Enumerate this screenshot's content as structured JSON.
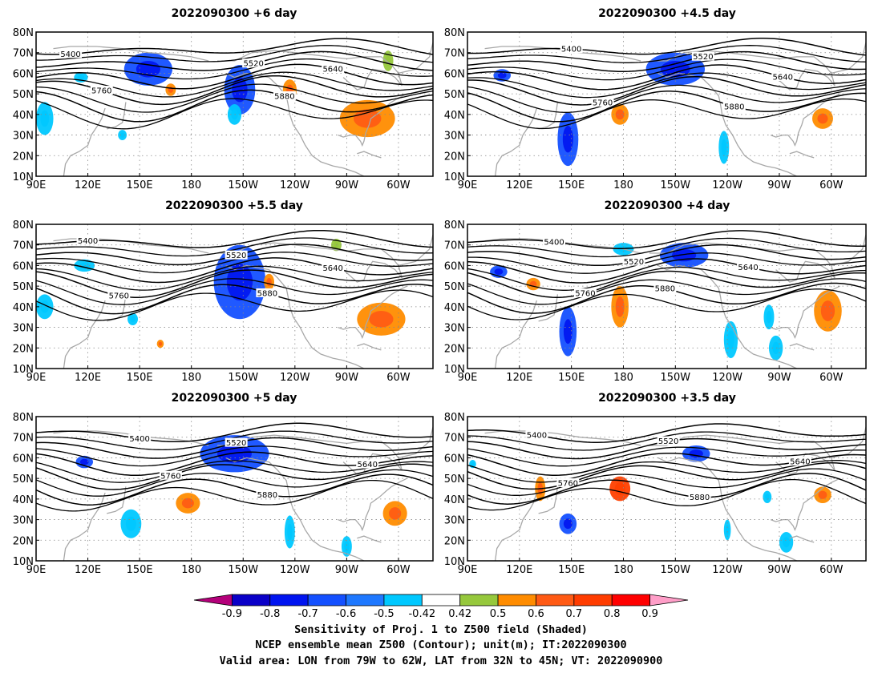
{
  "panels": [
    {
      "title": "2022090300 +6 day",
      "blobs": [
        {
          "lon": 155,
          "lat": 62,
          "rx": 14,
          "ry": 8,
          "c": "#1450ff"
        },
        {
          "lon": 208,
          "lat": 52,
          "rx": 9,
          "ry": 12,
          "c": "#1450ff"
        },
        {
          "lon": 205,
          "lat": 40,
          "rx": 4,
          "ry": 5,
          "c": "#00c8ff"
        },
        {
          "lon": 95,
          "lat": 38,
          "rx": 5,
          "ry": 8,
          "c": "#00c8ff"
        },
        {
          "lon": 116,
          "lat": 58,
          "rx": 4,
          "ry": 2.5,
          "c": "#00c8ff"
        },
        {
          "lon": 140,
          "lat": 30,
          "rx": 2.5,
          "ry": 2.5,
          "c": "#00c8ff"
        },
        {
          "lon": 237,
          "lat": 52,
          "rx": 4,
          "ry": 5,
          "c": "#ff8c00"
        },
        {
          "lon": 282,
          "lat": 38,
          "rx": 16,
          "ry": 9,
          "c": "#ff8c00"
        },
        {
          "lon": 294,
          "lat": 66,
          "rx": 3,
          "ry": 5,
          "c": "#96c83c"
        },
        {
          "lon": 168,
          "lat": 52,
          "rx": 3,
          "ry": 3,
          "c": "#ff8c00"
        }
      ]
    },
    {
      "title": "2022090300 +4.5 day",
      "blobs": [
        {
          "lon": 210,
          "lat": 62,
          "rx": 17,
          "ry": 8,
          "c": "#1450ff"
        },
        {
          "lon": 110,
          "lat": 59,
          "rx": 5,
          "ry": 3,
          "c": "#1450ff"
        },
        {
          "lon": 148,
          "lat": 28,
          "rx": 6,
          "ry": 13,
          "c": "#1450ff"
        },
        {
          "lon": 238,
          "lat": 24,
          "rx": 3,
          "ry": 8,
          "c": "#00c8ff"
        },
        {
          "lon": 178,
          "lat": 40,
          "rx": 5,
          "ry": 5,
          "c": "#ff8c00"
        },
        {
          "lon": 295,
          "lat": 38,
          "rx": 6,
          "ry": 5,
          "c": "#ff8c00"
        }
      ]
    },
    {
      "title": "2022090300 +5.5 day",
      "blobs": [
        {
          "lon": 208,
          "lat": 52,
          "rx": 15,
          "ry": 18,
          "c": "#1450ff"
        },
        {
          "lon": 118,
          "lat": 60,
          "rx": 6,
          "ry": 3,
          "c": "#00c8ff"
        },
        {
          "lon": 95,
          "lat": 40,
          "rx": 5,
          "ry": 6,
          "c": "#00c8ff"
        },
        {
          "lon": 146,
          "lat": 34,
          "rx": 3,
          "ry": 3,
          "c": "#00c8ff"
        },
        {
          "lon": 225,
          "lat": 52,
          "rx": 3,
          "ry": 4,
          "c": "#ff8c00"
        },
        {
          "lon": 290,
          "lat": 34,
          "rx": 14,
          "ry": 8,
          "c": "#ff8c00"
        },
        {
          "lon": 162,
          "lat": 22,
          "rx": 2,
          "ry": 2,
          "c": "#ff8c00"
        },
        {
          "lon": 264,
          "lat": 70,
          "rx": 3,
          "ry": 3,
          "c": "#96c83c"
        }
      ]
    },
    {
      "title": "2022090300 +4 day",
      "blobs": [
        {
          "lon": 215,
          "lat": 65,
          "rx": 14,
          "ry": 6,
          "c": "#1450ff"
        },
        {
          "lon": 108,
          "lat": 57,
          "rx": 5,
          "ry": 3,
          "c": "#1450ff"
        },
        {
          "lon": 148,
          "lat": 28,
          "rx": 5,
          "ry": 12,
          "c": "#1450ff"
        },
        {
          "lon": 242,
          "lat": 24,
          "rx": 4,
          "ry": 9,
          "c": "#00c8ff"
        },
        {
          "lon": 264,
          "lat": 35,
          "rx": 3,
          "ry": 6,
          "c": "#00c8ff"
        },
        {
          "lon": 268,
          "lat": 20,
          "rx": 4,
          "ry": 6,
          "c": "#00c8ff"
        },
        {
          "lon": 178,
          "lat": 40,
          "rx": 5,
          "ry": 10,
          "c": "#ff8c00"
        },
        {
          "lon": 128,
          "lat": 51,
          "rx": 4,
          "ry": 3,
          "c": "#ff8c00"
        },
        {
          "lon": 298,
          "lat": 38,
          "rx": 8,
          "ry": 10,
          "c": "#ff8c00"
        },
        {
          "lon": 180,
          "lat": 68,
          "rx": 6,
          "ry": 3,
          "c": "#00c8ff"
        }
      ]
    },
    {
      "title": "2022090300 +5 day",
      "blobs": [
        {
          "lon": 205,
          "lat": 62,
          "rx": 20,
          "ry": 9,
          "c": "#1450ff"
        },
        {
          "lon": 118,
          "lat": 58,
          "rx": 5,
          "ry": 3,
          "c": "#1450ff"
        },
        {
          "lon": 145,
          "lat": 28,
          "rx": 6,
          "ry": 7,
          "c": "#00c8ff"
        },
        {
          "lon": 178,
          "lat": 38,
          "rx": 7,
          "ry": 5,
          "c": "#ff8c00"
        },
        {
          "lon": 237,
          "lat": 24,
          "rx": 3,
          "ry": 8,
          "c": "#00c8ff"
        },
        {
          "lon": 270,
          "lat": 17,
          "rx": 3,
          "ry": 5,
          "c": "#00c8ff"
        },
        {
          "lon": 298,
          "lat": 33,
          "rx": 7,
          "ry": 6,
          "c": "#ff8c00"
        }
      ]
    },
    {
      "title": "2022090300 +3.5 day",
      "blobs": [
        {
          "lon": 222,
          "lat": 62,
          "rx": 8,
          "ry": 4,
          "c": "#1450ff"
        },
        {
          "lon": 148,
          "lat": 28,
          "rx": 5,
          "ry": 5,
          "c": "#1450ff"
        },
        {
          "lon": 178,
          "lat": 45,
          "rx": 6,
          "ry": 6,
          "c": "#ff4000"
        },
        {
          "lon": 132,
          "lat": 45,
          "rx": 3,
          "ry": 6,
          "c": "#ff8c00"
        },
        {
          "lon": 295,
          "lat": 42,
          "rx": 5,
          "ry": 4,
          "c": "#ff8c00"
        },
        {
          "lon": 263,
          "lat": 41,
          "rx": 2.5,
          "ry": 3,
          "c": "#00c8ff"
        },
        {
          "lon": 240,
          "lat": 25,
          "rx": 2,
          "ry": 5,
          "c": "#00c8ff"
        },
        {
          "lon": 274,
          "lat": 19,
          "rx": 4,
          "ry": 5,
          "c": "#00c8ff"
        },
        {
          "lon": 93,
          "lat": 57,
          "rx": 2,
          "ry": 2,
          "c": "#00c8ff"
        }
      ]
    }
  ],
  "map": {
    "lon_ticks": [
      "90E",
      "120E",
      "150E",
      "180",
      "150W",
      "120W",
      "90W",
      "60W"
    ],
    "lat_ticks": [
      "80N",
      "70N",
      "60N",
      "50N",
      "40N",
      "30N",
      "20N",
      "10N"
    ],
    "lon_range": [
      90,
      320
    ],
    "lat_range": [
      10,
      80
    ],
    "contour_color": "#000000",
    "coast_color": "#a8a8a8",
    "grid_color": "#888888"
  },
  "colorbar": {
    "colors": [
      "#b4007a",
      "#0a00c8",
      "#0014f0",
      "#1450ff",
      "#1e78ff",
      "#00c8ff",
      "#ffffff",
      "#96c83c",
      "#ff8c00",
      "#ff5a14",
      "#ff3c00",
      "#ff0000",
      "#ff9ec8"
    ],
    "labels": [
      "-0.9",
      "-0.8",
      "-0.7",
      "-0.6",
      "-0.5",
      "-0.42",
      "0.42",
      "0.5",
      "0.6",
      "0.7",
      "0.8",
      "0.9"
    ]
  },
  "caption": {
    "line1": "Sensitivity of Proj. 1 to Z500 field (Shaded)",
    "line2": "NCEP ensemble mean Z500 (Contour); unit(m); IT:2022090300",
    "line3": "Valid area: LON from 79W to 62W, LAT from 32N to 45N; VT: 2022090900"
  }
}
